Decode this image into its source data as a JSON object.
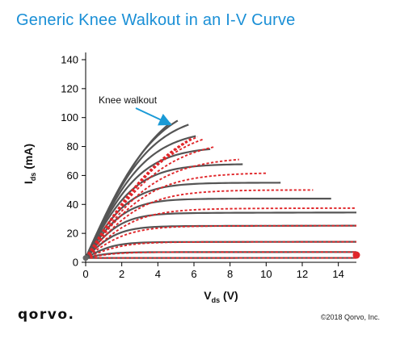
{
  "title": "Generic Knee Walkout in an I-V Curve",
  "brand": "qorvo.",
  "copyright": "©2018 Qorvo, Inc.",
  "colors": {
    "title": "#1a8fd6",
    "solid_curve": "#555555",
    "dashed_curve": "#e0262a",
    "annotation_arrow": "#1a9ad6",
    "endpoint_marker": "#e0262a"
  },
  "chart_data": {
    "type": "line",
    "title": "Generic Knee Walkout in an I-V Curve",
    "xlabel_main": "V",
    "xlabel_sub": "ds",
    "xlabel_unit": " (V)",
    "ylabel_main": "I",
    "ylabel_sub": "ds",
    "ylabel_unit": " (mA)",
    "xlim": [
      0,
      15
    ],
    "ylim": [
      0,
      145
    ],
    "xticks": [
      0,
      2,
      4,
      6,
      8,
      10,
      12,
      14
    ],
    "yticks": [
      0,
      20,
      40,
      60,
      80,
      100,
      120,
      140
    ],
    "grid": false,
    "annotation": {
      "text": "Knee walkout",
      "arrow_to": [
        4.8,
        98
      ]
    },
    "origin_point": [
      0,
      3
    ],
    "endpoint_marker": [
      15,
      5
    ],
    "series_style_notes": "solid gray = reference curves, dashed red = walked-out curves",
    "solid_curves": [
      {
        "vk": 1.2,
        "isat": 3,
        "xend": 15
      },
      {
        "vk": 1.4,
        "isat": 7,
        "xend": 15
      },
      {
        "vk": 1.6,
        "isat": 14,
        "xend": 15
      },
      {
        "vk": 1.8,
        "isat": 25,
        "xend": 15
      },
      {
        "vk": 2.0,
        "isat": 34,
        "xend": 15
      },
      {
        "vk": 2.2,
        "isat": 44,
        "xend": 13.6
      },
      {
        "vk": 2.5,
        "isat": 55,
        "xend": 10.8
      },
      {
        "vk": 2.8,
        "isat": 68,
        "xend": 8.7
      },
      {
        "vk": 3.1,
        "isat": 80,
        "xend": 6.9
      },
      {
        "vk": 3.4,
        "isat": 92,
        "xend": 6.1
      },
      {
        "vk": 3.7,
        "isat": 104,
        "xend": 5.7
      },
      {
        "vk": 4.0,
        "isat": 114,
        "xend": 5.1
      },
      {
        "vk": 4.3,
        "isat": 120,
        "xend": 4.7
      }
    ],
    "dashed_curves": [
      {
        "vk": 1.5,
        "isat": 3,
        "xend": 15
      },
      {
        "vk": 1.8,
        "isat": 7,
        "xend": 15
      },
      {
        "vk": 2.1,
        "isat": 14,
        "xend": 15
      },
      {
        "vk": 2.4,
        "isat": 25,
        "xend": 15
      },
      {
        "vk": 2.8,
        "isat": 37,
        "xend": 15
      },
      {
        "vk": 3.2,
        "isat": 50,
        "xend": 12.6
      },
      {
        "vk": 3.6,
        "isat": 62,
        "xend": 10.0
      },
      {
        "vk": 4.0,
        "isat": 73,
        "xend": 8.5
      },
      {
        "vk": 4.4,
        "isat": 86,
        "xend": 7.1
      },
      {
        "vk": 4.7,
        "isat": 96,
        "xend": 6.5
      },
      {
        "vk": 5.0,
        "isat": 102,
        "xend": 6.2
      },
      {
        "vk": 5.3,
        "isat": 106,
        "xend": 5.9
      },
      {
        "vk": 5.6,
        "isat": 108,
        "xend": 5.6
      }
    ]
  }
}
